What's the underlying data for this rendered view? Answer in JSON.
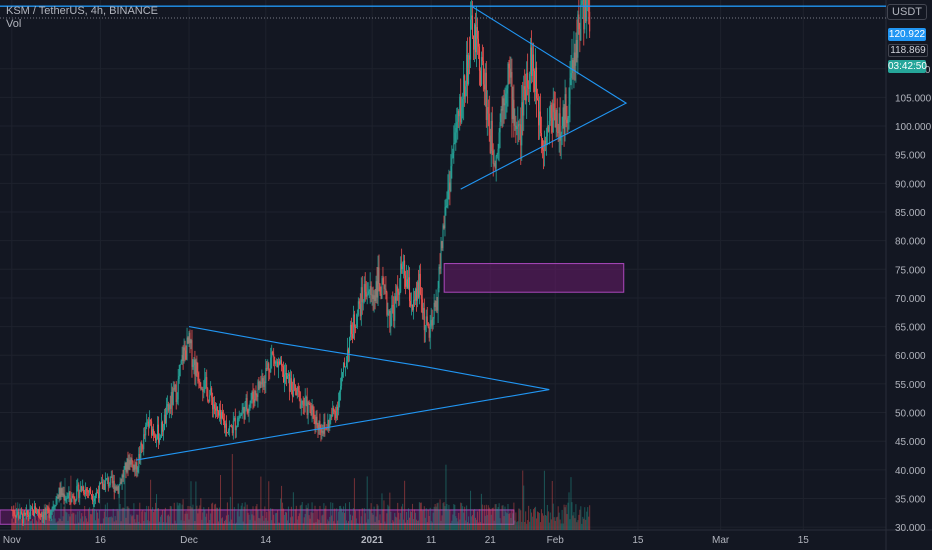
{
  "header": {
    "symbol_line": "KSM / TetherUS, 4h, BINANCE",
    "indicator": "Vol"
  },
  "currency": "USDT",
  "price_tags": {
    "horizontal_line": "120.922",
    "last_price": "118.869",
    "countdown": "03:42:50"
  },
  "colors": {
    "background": "#131722",
    "grid": "#1e222d",
    "up": "#26a69a",
    "down": "#ef5350",
    "drawing": "#2196f3",
    "zone_fill": "#6a1b6b",
    "zone_border": "#ab47bc"
  },
  "chart_data": {
    "type": "candlestick",
    "symbol": "KSM / TetherUS",
    "interval": "4h",
    "exchange": "BINANCE",
    "y_ticks": [
      30,
      35,
      40,
      45,
      50,
      55,
      60,
      65,
      70,
      75,
      80,
      85,
      90,
      95,
      100,
      105,
      110
    ],
    "y_tick_labels": [
      "30.000",
      "35.000",
      "40.000",
      "45.000",
      "50.000",
      "55.000",
      "60.000",
      "65.000",
      "70.000",
      "75.000",
      "80.000",
      "85.000",
      "90.000",
      "95.000",
      "100.000",
      "105.000",
      "110.000"
    ],
    "ylim": [
      29.5,
      122
    ],
    "x_ticks": [
      {
        "label": "Nov",
        "day": 0
      },
      {
        "label": "16",
        "day": 15
      },
      {
        "label": "Dec",
        "day": 30
      },
      {
        "label": "14",
        "day": 43
      },
      {
        "label": "2021",
        "day": 61
      },
      {
        "label": "11",
        "day": 71
      },
      {
        "label": "21",
        "day": 81
      },
      {
        "label": "Feb",
        "day": 92
      },
      {
        "label": "15",
        "day": 106
      },
      {
        "label": "Mar",
        "day": 120
      },
      {
        "label": "15",
        "day": 134
      }
    ],
    "xlim_days": [
      -2,
      148
    ],
    "price_path": [
      [
        0,
        33
      ],
      [
        2,
        31.5
      ],
      [
        4,
        33
      ],
      [
        6,
        32
      ],
      [
        8,
        36
      ],
      [
        10,
        35
      ],
      [
        12,
        37
      ],
      [
        14,
        35.5
      ],
      [
        16,
        38
      ],
      [
        18,
        37
      ],
      [
        20,
        42
      ],
      [
        21,
        40
      ],
      [
        23,
        48
      ],
      [
        25,
        46
      ],
      [
        27,
        52
      ],
      [
        28,
        54
      ],
      [
        29,
        60
      ],
      [
        30,
        62
      ],
      [
        31,
        58
      ],
      [
        32,
        56
      ],
      [
        34,
        52
      ],
      [
        35,
        49
      ],
      [
        37,
        47
      ],
      [
        39,
        50
      ],
      [
        41,
        53
      ],
      [
        43,
        57
      ],
      [
        44,
        60
      ],
      [
        45,
        58
      ],
      [
        47,
        55
      ],
      [
        49,
        52
      ],
      [
        50,
        51
      ],
      [
        52,
        48
      ],
      [
        53,
        47
      ],
      [
        54,
        49
      ],
      [
        55,
        51
      ],
      [
        56,
        56
      ],
      [
        57,
        62
      ],
      [
        58,
        66
      ],
      [
        59,
        69
      ],
      [
        60,
        72
      ],
      [
        61,
        70
      ],
      [
        62,
        73
      ],
      [
        63,
        70
      ],
      [
        64,
        67
      ],
      [
        65,
        69
      ],
      [
        66,
        75
      ],
      [
        67,
        72
      ],
      [
        68,
        68
      ],
      [
        69,
        72
      ],
      [
        70,
        65
      ],
      [
        71,
        64
      ],
      [
        72,
        70
      ],
      [
        73,
        82
      ],
      [
        74,
        90
      ],
      [
        74.5,
        94
      ],
      [
        75,
        98
      ],
      [
        76,
        103
      ],
      [
        77,
        110
      ],
      [
        78,
        117
      ],
      [
        79,
        112
      ],
      [
        80,
        108
      ],
      [
        81,
        98
      ],
      [
        82,
        95
      ],
      [
        83,
        104
      ],
      [
        84,
        110
      ],
      [
        85,
        102
      ],
      [
        86,
        98
      ],
      [
        87,
        108
      ],
      [
        88,
        112
      ],
      [
        89,
        104
      ],
      [
        90,
        98
      ],
      [
        91,
        101
      ],
      [
        92,
        103
      ],
      [
        93,
        98
      ],
      [
        94,
        104
      ],
      [
        95,
        110
      ],
      [
        96,
        118
      ],
      [
        97,
        121
      ],
      [
        98,
        118.869
      ]
    ],
    "volume_level_estimate": [
      0,
      8
    ],
    "drawings": {
      "horizontal_line_price": 120.922,
      "triangle_1": [
        [
          30,
          65
        ],
        [
          46,
          62
        ],
        [
          70,
          58
        ],
        [
          91,
          54
        ],
        [
          21,
          41.7
        ]
      ],
      "triangle_2": [
        [
          78,
          120.8
        ],
        [
          104,
          104
        ],
        [
          76,
          89
        ]
      ],
      "zone_1": {
        "from_day": 73.2,
        "to_day": 103.6,
        "low": 71,
        "high": 76
      },
      "zone_2": {
        "from_day": -2,
        "to_day": 85,
        "low": 30.5,
        "high": 33
      }
    }
  }
}
